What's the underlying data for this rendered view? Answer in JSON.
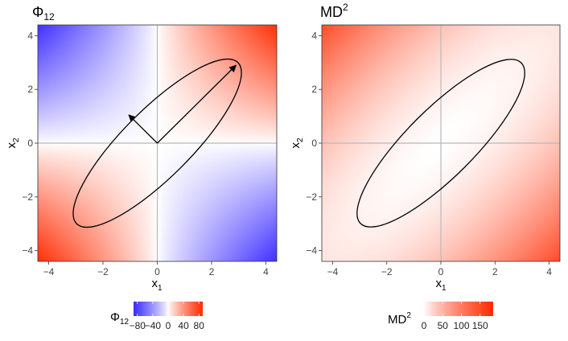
{
  "chart_data": [
    {
      "type": "heatmap",
      "title": "Φ",
      "title_sub": "12",
      "xlabel": "x",
      "xlabel_sub": "1",
      "ylabel": "x",
      "ylabel_sub": "2",
      "xlim": [
        -4.4,
        4.4
      ],
      "ylim": [
        -4.4,
        4.4
      ],
      "xticks": [
        -4,
        -2,
        0,
        2,
        4
      ],
      "yticks": [
        -4,
        -2,
        0,
        2,
        4
      ],
      "xtick_labels": [
        "−4",
        "−2",
        "0",
        "2",
        "4"
      ],
      "ytick_labels": [
        "−4",
        "−2",
        "0",
        "2",
        "4"
      ],
      "field": "x1*x2 scaled by covariance, diverging",
      "color_low": "#3b2bff",
      "color_mid": "#ffffff",
      "color_high": "#ff2a00",
      "value_range": [
        -90,
        90
      ],
      "zero_lines": true,
      "ellipse": {
        "center": [
          0,
          0
        ],
        "semi_major": 4.2,
        "semi_minor": 1.25,
        "angle_deg": 45
      },
      "arrows": [
        {
          "from": [
            0,
            0
          ],
          "to": [
            2.9,
            2.9
          ]
        },
        {
          "from": [
            0,
            0
          ],
          "to": [
            -1.05,
            1.05
          ]
        }
      ],
      "legend": {
        "title": "Φ",
        "title_sub": "12",
        "ticks": [
          -80,
          -40,
          0,
          40,
          80
        ],
        "tick_labels": [
          "−80",
          "−40",
          "0",
          "40",
          "80"
        ],
        "range": [
          -90,
          90
        ],
        "placement": "bottom"
      }
    },
    {
      "type": "heatmap",
      "title": "MD",
      "title_sup": "2",
      "xlabel": "x",
      "xlabel_sub": "1",
      "ylabel": "x",
      "ylabel_sub": "2",
      "xlim": [
        -4.4,
        4.4
      ],
      "ylim": [
        -4.4,
        4.4
      ],
      "xticks": [
        -4,
        -2,
        0,
        2,
        4
      ],
      "yticks": [
        -4,
        -2,
        0,
        2,
        4
      ],
      "xtick_labels": [
        "−4",
        "−2",
        "0",
        "2",
        "4"
      ],
      "ytick_labels": [
        "−4",
        "−2",
        "0",
        "2",
        "4"
      ],
      "field": "Mahalanobis distance squared",
      "color_low": "#ffffff",
      "color_high": "#ff2a00",
      "value_range": [
        0,
        185
      ],
      "zero_lines": true,
      "ellipse": {
        "center": [
          0,
          0
        ],
        "semi_major": 4.2,
        "semi_minor": 1.25,
        "angle_deg": 45
      },
      "legend": {
        "title": "MD",
        "title_sup": "2",
        "ticks": [
          0,
          50,
          100,
          150
        ],
        "tick_labels": [
          "0",
          "50",
          "100",
          "150"
        ],
        "range": [
          0,
          185
        ],
        "placement": "bottom"
      }
    }
  ]
}
